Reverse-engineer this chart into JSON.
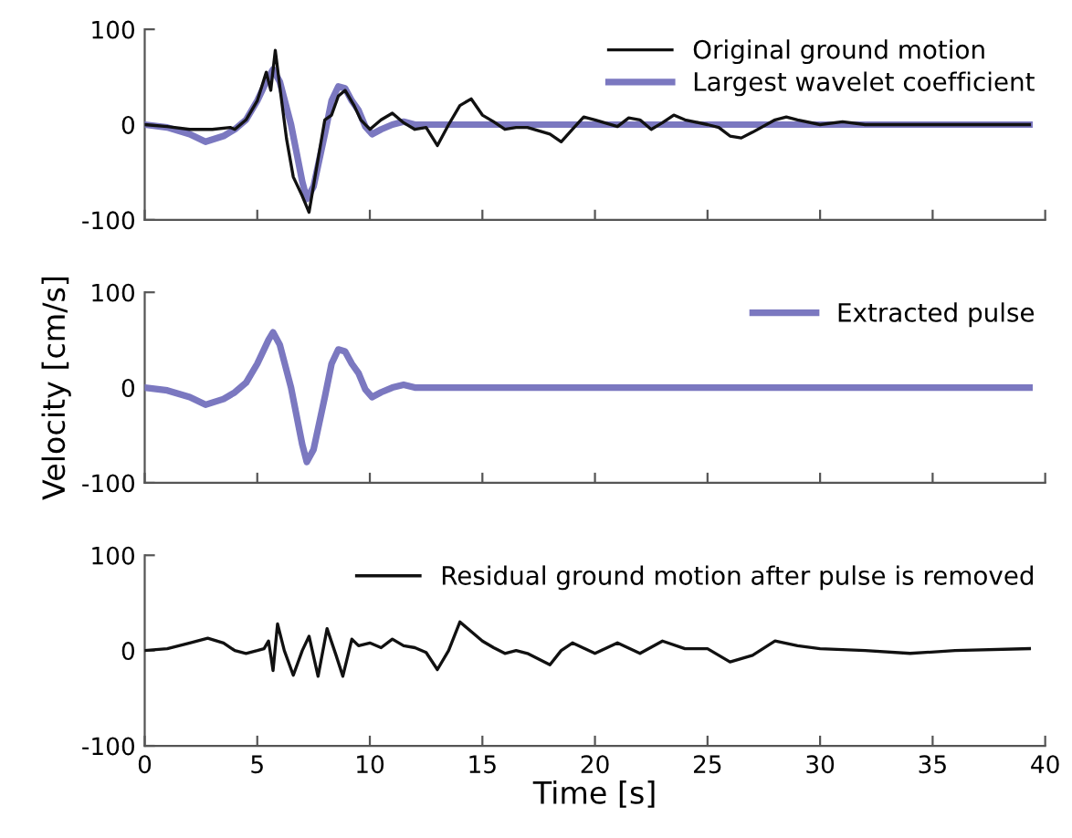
{
  "chart_data": [
    {
      "type": "line",
      "xlim": [
        0,
        40
      ],
      "xticks": [
        0,
        5,
        10,
        15,
        20,
        25,
        30,
        35,
        40
      ],
      "ylim": [
        -100,
        100
      ],
      "yticks": [
        -100,
        0,
        100
      ],
      "tick_labels": "y",
      "legend": "top right",
      "grid": false,
      "series": [
        {
          "name": "Original ground motion",
          "color": "#111111",
          "x": [
            0,
            1,
            2,
            3,
            3.8,
            4,
            4.5,
            5,
            5.4,
            5.6,
            5.8,
            6.0,
            6.3,
            6.6,
            7.0,
            7.3,
            7.6,
            8.0,
            8.3,
            8.6,
            8.9,
            9.3,
            9.6,
            10,
            10.5,
            11,
            11.5,
            12,
            12.5,
            13,
            13.5,
            14,
            14.5,
            15,
            15.5,
            16,
            16.5,
            17,
            18,
            18.5,
            19,
            19.5,
            20,
            21,
            21.5,
            22,
            22.5,
            23,
            23.5,
            24,
            25,
            25.5,
            26,
            26.5,
            27,
            28,
            28.5,
            29,
            30,
            31,
            32,
            34,
            39.3
          ],
          "values": [
            0,
            -2,
            -5,
            -5,
            -3,
            -5,
            5,
            25,
            55,
            36,
            78,
            40,
            -15,
            -55,
            -75,
            -92,
            -50,
            5,
            10,
            30,
            36,
            20,
            5,
            -5,
            5,
            12,
            2,
            -5,
            -3,
            -22,
            0,
            20,
            27,
            10,
            3,
            -5,
            -3,
            -3,
            -10,
            -18,
            -5,
            8,
            5,
            -2,
            7,
            5,
            -5,
            2,
            10,
            5,
            0,
            -3,
            -12,
            -14,
            -8,
            5,
            8,
            5,
            0,
            3,
            0,
            0,
            0
          ]
        },
        {
          "name": "Largest wavelet coefficient",
          "color": "#7b78c0",
          "x": [
            0,
            1,
            2,
            2.7,
            3.5,
            4,
            4.5,
            5,
            5.5,
            5.7,
            6.0,
            6.5,
            7.0,
            7.2,
            7.5,
            8.0,
            8.3,
            8.6,
            8.9,
            9.2,
            9.5,
            9.8,
            10.1,
            10.5,
            11,
            11.5,
            12,
            39.3
          ],
          "values": [
            0,
            -3,
            -10,
            -18,
            -12,
            -5,
            5,
            25,
            50,
            58,
            45,
            0,
            -60,
            -78,
            -65,
            -10,
            25,
            40,
            38,
            25,
            15,
            -2,
            -10,
            -5,
            0,
            3,
            0,
            0
          ]
        }
      ]
    },
    {
      "type": "line",
      "xlim": [
        0,
        40
      ],
      "xticks": [
        0,
        5,
        10,
        15,
        20,
        25,
        30,
        35,
        40
      ],
      "ylim": [
        -100,
        100
      ],
      "yticks": [
        -100,
        0,
        100
      ],
      "tick_labels": "y",
      "legend": "top right",
      "grid": false,
      "ylabel": "Velocity [cm/s]",
      "series": [
        {
          "name": "Extracted pulse",
          "color": "#7b78c0",
          "x": [
            0,
            1,
            2,
            2.7,
            3.5,
            4,
            4.5,
            5,
            5.5,
            5.7,
            6.0,
            6.5,
            7.0,
            7.2,
            7.5,
            8.0,
            8.3,
            8.6,
            8.9,
            9.2,
            9.5,
            9.8,
            10.1,
            10.5,
            11,
            11.5,
            12,
            39.3
          ],
          "values": [
            0,
            -3,
            -10,
            -18,
            -12,
            -5,
            5,
            25,
            50,
            58,
            45,
            0,
            -60,
            -78,
            -65,
            -10,
            25,
            40,
            38,
            25,
            15,
            -2,
            -10,
            -5,
            0,
            3,
            0,
            0
          ]
        }
      ]
    },
    {
      "type": "line",
      "xlim": [
        0,
        40
      ],
      "xticks": [
        0,
        5,
        10,
        15,
        20,
        25,
        30,
        35,
        40
      ],
      "ylim": [
        -100,
        100
      ],
      "yticks": [
        -100,
        0,
        100
      ],
      "legend": "top right",
      "grid": false,
      "xlabel": "Time [s]",
      "series": [
        {
          "name": "Residual ground motion after pulse is removed",
          "color": "#111111",
          "x": [
            0,
            1,
            2,
            2.8,
            3.5,
            4,
            4.5,
            5,
            5.3,
            5.5,
            5.6,
            5.7,
            5.9,
            6.2,
            6.6,
            7.0,
            7.3,
            7.7,
            8.1,
            8.5,
            8.8,
            9.2,
            9.5,
            10,
            10.5,
            11,
            11.5,
            12,
            12.5,
            13,
            13.5,
            14,
            14.5,
            15,
            15.5,
            16,
            16.5,
            17,
            18,
            18.5,
            19,
            20,
            21,
            22,
            23,
            24,
            25,
            26,
            27,
            28,
            29,
            30,
            32,
            34,
            36,
            39.3
          ],
          "values": [
            0,
            2,
            8,
            13,
            8,
            0,
            -3,
            0,
            2,
            10,
            -5,
            -21,
            28,
            0,
            -26,
            0,
            15,
            -27,
            23,
            -5,
            -27,
            12,
            5,
            8,
            3,
            12,
            5,
            3,
            -2,
            -20,
            0,
            30,
            20,
            10,
            3,
            -3,
            0,
            -3,
            -15,
            0,
            8,
            -3,
            8,
            -3,
            10,
            2,
            2,
            -12,
            -5,
            10,
            5,
            2,
            0,
            -3,
            0,
            2
          ]
        }
      ]
    }
  ]
}
